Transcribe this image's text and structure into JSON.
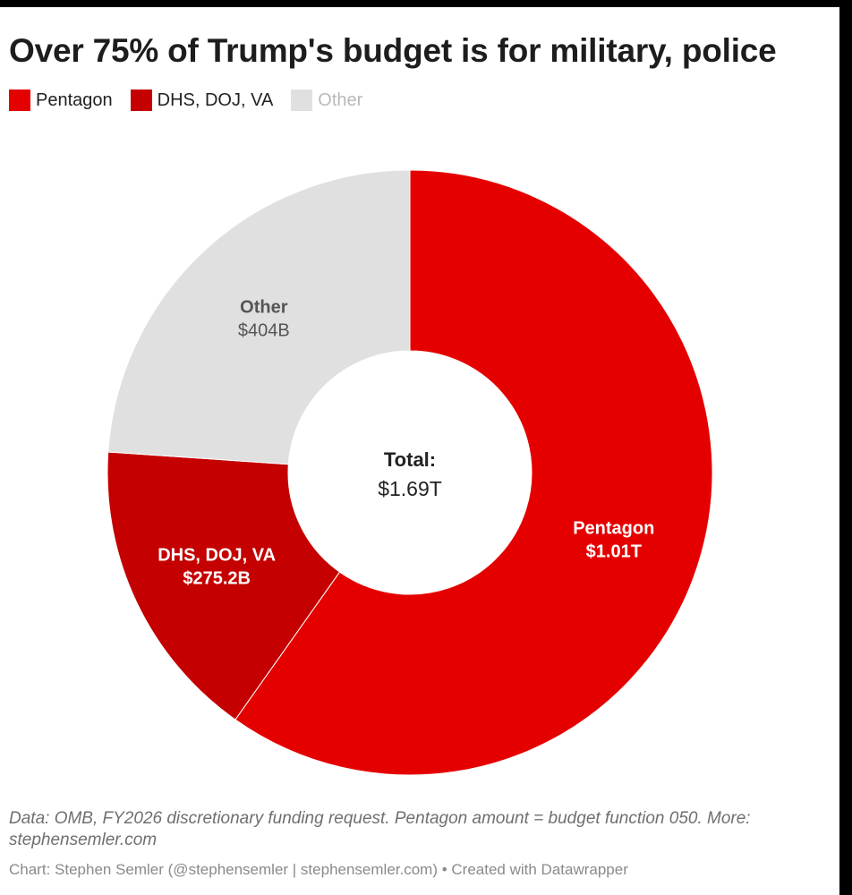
{
  "chart_data": {
    "type": "pie",
    "title": "Over 75% of Trump's budget is for military, police",
    "legend_placement": "top-left",
    "slices": [
      {
        "label": "Pentagon",
        "value": 1010,
        "value_label": "$1.01T",
        "color": "#e50000"
      },
      {
        "label": "DHS, DOJ, VA",
        "value": 275.2,
        "value_label": "$275.2B",
        "color": "#c40000"
      },
      {
        "label": "Other",
        "value": 404,
        "value_label": "$404B",
        "color": "#e0e0e0"
      }
    ],
    "center_label": "Total:",
    "center_value": "$1.69T"
  },
  "footer": {
    "note": "Data: OMB, FY2026 discretionary funding request. Pentagon amount = budget function 050. More: stephensemler.com",
    "credit": "Chart: Stephen Semler (@stephensemler | stephensemler.com) • Created with Datawrapper"
  }
}
